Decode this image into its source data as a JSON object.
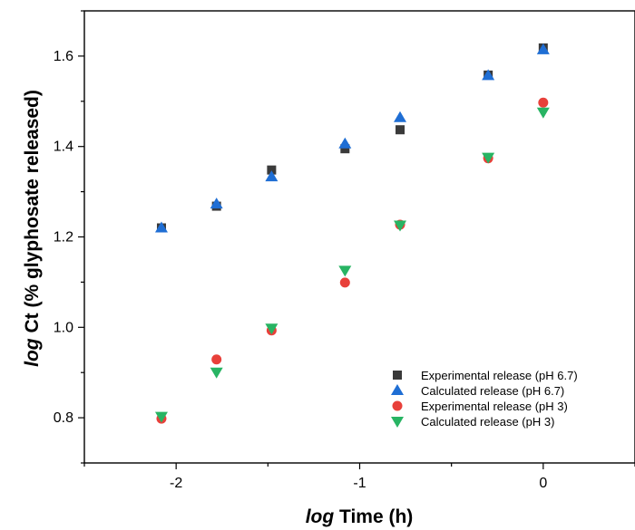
{
  "chart_data": {
    "type": "scatter",
    "xlabel_italic": "log",
    "xlabel_rest": " Time (h)",
    "ylabel_italic": "log",
    "ylabel_rest": " Ct (% glyphosate released)",
    "xlim": [
      -2.5,
      0.5
    ],
    "ylim": [
      0.7,
      1.7
    ],
    "xticks": [
      -2,
      -1,
      0
    ],
    "xtick_labels": [
      "-2",
      "-1",
      "0"
    ],
    "yticks": [
      0.8,
      1.0,
      1.2,
      1.4,
      1.6
    ],
    "ytick_labels": [
      "0.8",
      "1.0",
      "1.2",
      "1.4",
      "1.6"
    ],
    "grid": false,
    "legend_position": "bottom-right",
    "series": [
      {
        "name": "Experimental release (pH 6.7)",
        "marker": "square",
        "color": "#3a3a3a",
        "x": [
          -2.08,
          -1.78,
          -1.48,
          -1.08,
          -0.78,
          -0.3,
          0.0
        ],
        "y": [
          1.22,
          1.268,
          1.348,
          1.395,
          1.437,
          1.558,
          1.618
        ]
      },
      {
        "name": "Calculated release (pH 6.7)",
        "marker": "triangle-up",
        "color": "#1f6ed4",
        "x": [
          -2.08,
          -1.78,
          -1.48,
          -1.08,
          -0.78,
          -0.3,
          0.0
        ],
        "y": [
          1.22,
          1.273,
          1.333,
          1.406,
          1.464,
          1.557,
          1.614
        ]
      },
      {
        "name": "Experimental release (pH 3)",
        "marker": "circle",
        "color": "#e8403a",
        "x": [
          -2.08,
          -1.78,
          -1.48,
          -1.08,
          -0.78,
          -0.3,
          0.0
        ],
        "y": [
          0.798,
          0.929,
          0.993,
          1.099,
          1.227,
          1.374,
          1.497
        ]
      },
      {
        "name": "Calculated release (pH 3)",
        "marker": "triangle-down",
        "color": "#28b463",
        "x": [
          -2.08,
          -1.78,
          -1.48,
          -1.08,
          -0.78,
          -0.3,
          0.0
        ],
        "y": [
          0.803,
          0.901,
          0.998,
          1.126,
          1.226,
          1.376,
          1.476
        ]
      }
    ]
  }
}
